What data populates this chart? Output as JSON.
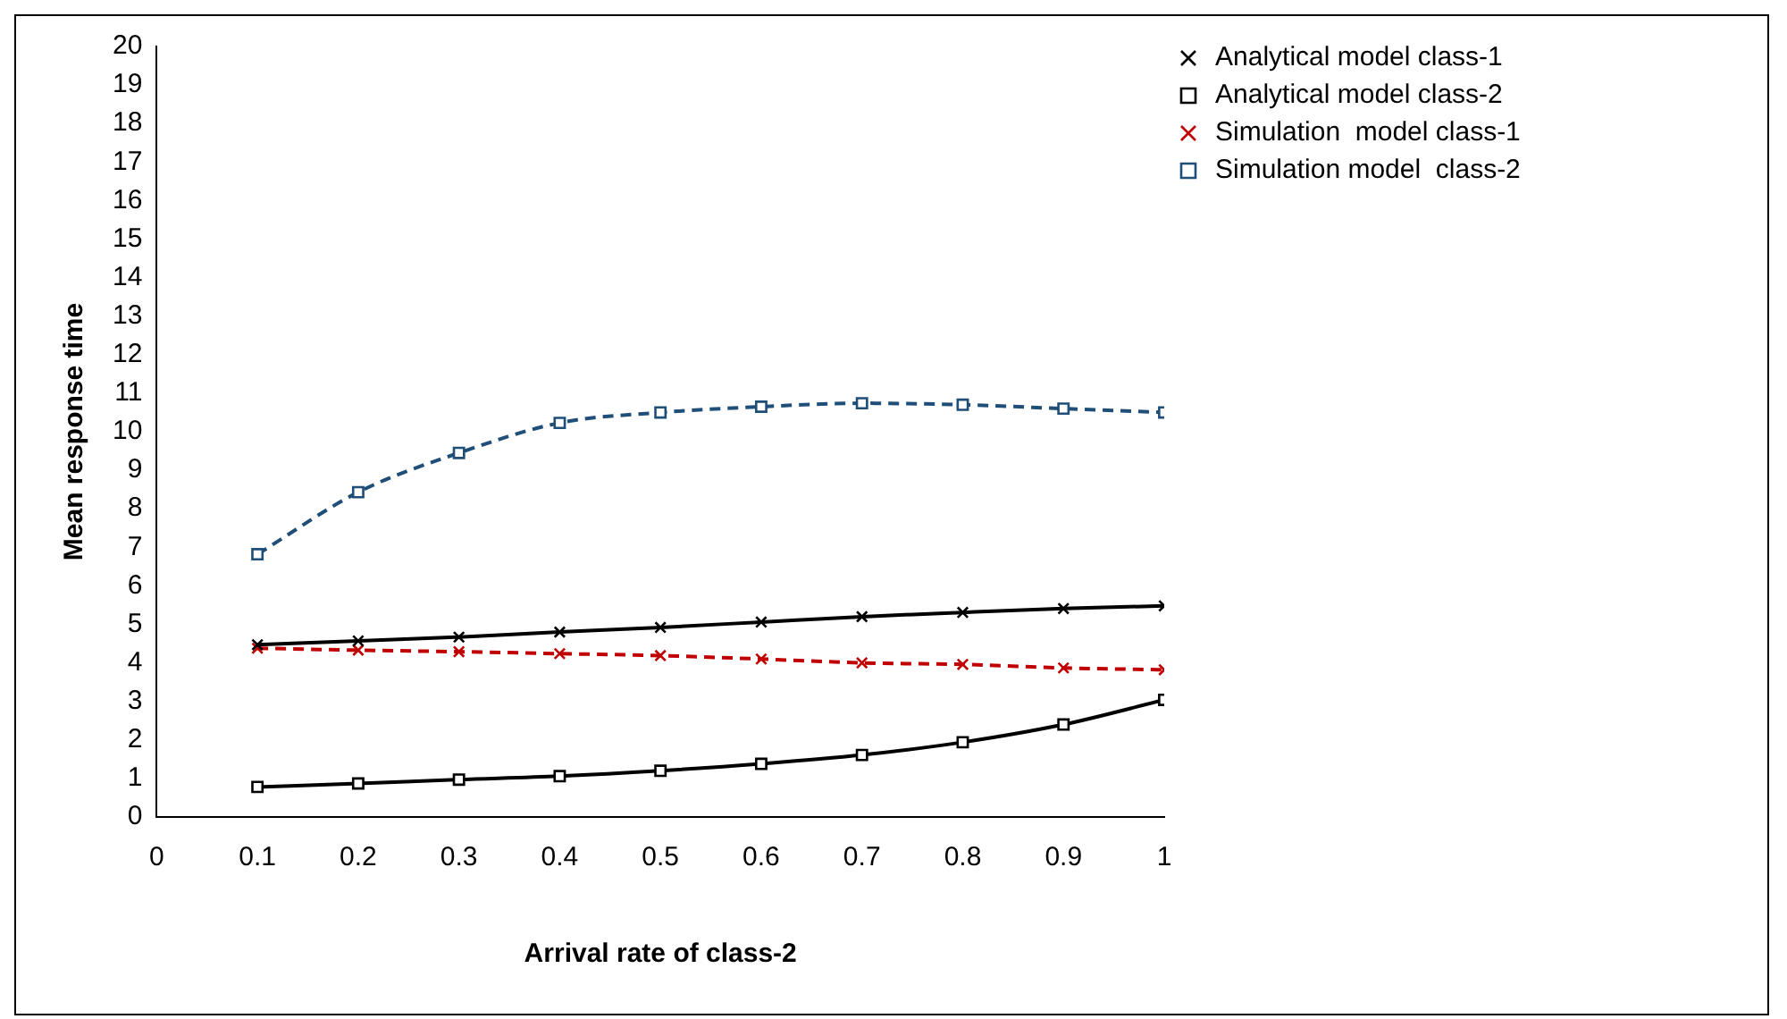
{
  "chart_data": {
    "type": "line",
    "xlabel": "Arrival rate of class-2",
    "ylabel": "Mean response time",
    "x": [
      0.1,
      0.2,
      0.3,
      0.4,
      0.5,
      0.6,
      0.7,
      0.8,
      0.9,
      1
    ],
    "xlim": [
      0,
      1
    ],
    "xticks": [
      0,
      0.1,
      0.2,
      0.3,
      0.4,
      0.5,
      0.6,
      0.7,
      0.8,
      0.9,
      1
    ],
    "ylim": [
      0,
      20
    ],
    "yticks": [
      0,
      1,
      2,
      3,
      4,
      5,
      6,
      7,
      8,
      9,
      10,
      11,
      12,
      13,
      14,
      15,
      16,
      17,
      18,
      19,
      20
    ],
    "grid": false,
    "legend": "top right",
    "series": [
      {
        "name": "Analytical model class-1",
        "color": "#000000",
        "marker": "cross",
        "line_style": "solid",
        "values": [
          4.47,
          4.57,
          4.67,
          4.8,
          4.92,
          5.06,
          5.2,
          5.31,
          5.41,
          5.48
        ]
      },
      {
        "name": "Analytical model class-2",
        "color": "#000000",
        "marker": "square",
        "line_style": "solid",
        "values": [
          0.78,
          0.87,
          0.97,
          1.06,
          1.2,
          1.38,
          1.61,
          1.94,
          2.4,
          3.04
        ]
      },
      {
        "name": "Simulation  model class-1",
        "color": "#c00000",
        "marker": "cross",
        "line_style": "dashed",
        "values": [
          4.38,
          4.33,
          4.29,
          4.24,
          4.19,
          4.1,
          4.0,
          3.96,
          3.87,
          3.82
        ]
      },
      {
        "name": "Simulation model  class-2",
        "color": "#1f4e79",
        "marker": "square",
        "line_style": "dashed",
        "values": [
          6.82,
          8.43,
          9.45,
          10.23,
          10.5,
          10.65,
          10.74,
          10.7,
          10.6,
          10.5
        ]
      }
    ]
  }
}
